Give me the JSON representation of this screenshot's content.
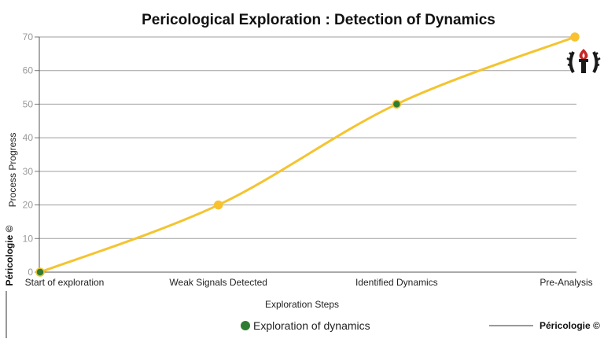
{
  "chart_data": {
    "type": "line",
    "title": "Pericological Exploration : Detection of Dynamics",
    "xlabel": "Exploration Steps",
    "ylabel": "Process Progress",
    "categories": [
      "Start of exploration",
      "Weak Signals Detected",
      "Identified Dynamics",
      "Pre-Analysis"
    ],
    "series": [
      {
        "name": "Exploration of dynamics",
        "values": [
          0,
          20,
          50,
          70
        ],
        "point_colors": [
          "#2e7d32",
          "#fbc02d",
          "#2e7d32",
          "#fbc02d"
        ]
      }
    ],
    "ylim": [
      0,
      70
    ],
    "yticks": [
      0,
      10,
      20,
      30,
      40,
      50,
      60,
      70
    ],
    "grid": true,
    "legend": "bottom"
  },
  "credits": {
    "side_label": "Péricologie ©",
    "footer_label": "Péricologie ©"
  },
  "colors": {
    "line": "#f4c430",
    "marker_green": "#2e7d32",
    "marker_yellow": "#fbc02d",
    "grid": "#9e9e9e",
    "logo_bg": "#1a1a1a",
    "logo_accent": "#c62828"
  },
  "icons": {
    "logo": "torch-laurel-emblem"
  }
}
